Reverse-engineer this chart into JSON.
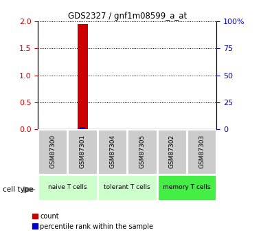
{
  "title": "GDS2327 / gnf1m08599_a_at",
  "samples": [
    "GSM87300",
    "GSM87301",
    "GSM87304",
    "GSM87305",
    "GSM87302",
    "GSM87303"
  ],
  "count_values": [
    0,
    1.95,
    0,
    0,
    0,
    0
  ],
  "percentile_values": [
    0,
    2.0,
    0,
    0,
    0,
    0
  ],
  "ylim_left": [
    0,
    2
  ],
  "ylim_right": [
    0,
    100
  ],
  "yticks_left": [
    0,
    0.5,
    1.0,
    1.5,
    2.0
  ],
  "yticks_right": [
    0,
    25,
    50,
    75,
    100
  ],
  "ytick_labels_right": [
    "0",
    "25",
    "50",
    "75",
    "100%"
  ],
  "cell_type_groups": [
    {
      "label": "naive T cells",
      "start": 0,
      "end": 2,
      "color": "#ccffcc"
    },
    {
      "label": "tolerant T cells",
      "start": 2,
      "end": 4,
      "color": "#ccffcc"
    },
    {
      "label": "memory T cells",
      "start": 4,
      "end": 6,
      "color": "#44ee44"
    }
  ],
  "bar_width": 0.35,
  "count_color": "#cc0000",
  "percentile_color": "#0000cc",
  "grid_color": "black",
  "sample_box_color": "#cccccc",
  "legend_count_label": "count",
  "legend_percentile_label": "percentile rank within the sample",
  "cell_type_label": "cell type"
}
